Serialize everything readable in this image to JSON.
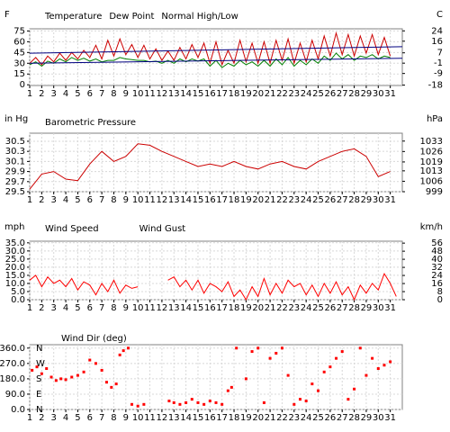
{
  "chart_data": [
    {
      "type": "line",
      "y_label": "F",
      "y2_label": "C",
      "x": [
        1,
        1.5,
        2,
        2.5,
        3,
        3.5,
        4,
        4.5,
        5,
        5.5,
        6,
        6.5,
        7,
        7.5,
        8,
        8.5,
        9,
        9.5,
        10,
        10.5,
        11,
        11.5,
        12,
        12.5,
        13,
        13.5,
        14,
        14.5,
        15,
        15.5,
        16,
        16.5,
        17,
        17.5,
        18,
        18.5,
        19,
        19.5,
        20,
        20.5,
        21,
        21.5,
        22,
        22.5,
        23,
        23.5,
        24,
        24.5,
        25,
        25.5,
        26,
        26.5,
        27,
        27.5,
        28,
        28.5,
        29,
        29.5,
        30,
        30.5,
        31
      ],
      "series": [
        {
          "name": "Temperature",
          "color": "#cc0000",
          "values": [
            30,
            38,
            28,
            40,
            32,
            44,
            34,
            45,
            36,
            48,
            38,
            55,
            36,
            62,
            40,
            64,
            42,
            56,
            38,
            55,
            36,
            50,
            34,
            47,
            34,
            52,
            36,
            56,
            38,
            58,
            30,
            60,
            28,
            48,
            30,
            62,
            32,
            58,
            30,
            60,
            30,
            62,
            34,
            64,
            30,
            58,
            32,
            62,
            36,
            68,
            40,
            72,
            42,
            70,
            40,
            68,
            44,
            70,
            42,
            66,
            40
          ]
        },
        {
          "name": "Dew Point",
          "color": "#008000",
          "values": [
            28,
            32,
            26,
            33,
            30,
            36,
            32,
            38,
            34,
            37,
            33,
            36,
            32,
            34,
            34,
            38,
            36,
            35,
            34,
            34,
            32,
            33,
            30,
            34,
            30,
            36,
            32,
            36,
            33,
            36,
            26,
            34,
            24,
            30,
            26,
            34,
            28,
            32,
            26,
            34,
            26,
            36,
            28,
            38,
            26,
            34,
            28,
            36,
            30,
            40,
            34,
            44,
            36,
            42,
            34,
            40,
            38,
            42,
            36,
            40,
            38
          ]
        },
        {
          "name": "Normal High/Low",
          "color": "#000080",
          "x": [
            1,
            32
          ],
          "high": [
            44,
            53
          ],
          "low": [
            30,
            37
          ]
        }
      ],
      "xlim": [
        1,
        32
      ],
      "xticks": [
        1,
        2,
        3,
        4,
        5,
        6,
        7,
        8,
        9,
        10,
        11,
        12,
        13,
        14,
        15,
        16,
        17,
        18,
        19,
        20,
        21,
        22,
        23,
        24,
        25,
        26,
        27,
        28,
        29,
        30,
        31
      ],
      "ylim": [
        -1,
        78
      ],
      "yticks": [
        75,
        60,
        45,
        30,
        15,
        0
      ],
      "y2lim": [
        -18.3,
        25.6
      ],
      "y2ticks": [
        24,
        16,
        7,
        -1,
        -9,
        -18
      ],
      "grid": true
    },
    {
      "type": "line",
      "y_label": "in Hg",
      "y2_label": "hPa",
      "title": "Barometric Pressure",
      "title_color": "#cc0000",
      "x": [
        1,
        2,
        3,
        4,
        5,
        6,
        7,
        8,
        9,
        10,
        11,
        12,
        13,
        14,
        15,
        16,
        17,
        18,
        19,
        20,
        21,
        22,
        23,
        24,
        25,
        26,
        27,
        28,
        29,
        30,
        31
      ],
      "series": [
        {
          "name": "Barometric Pressure",
          "color": "#cc0000",
          "values": [
            29.55,
            29.85,
            29.9,
            29.75,
            29.72,
            30.05,
            30.3,
            30.1,
            30.2,
            30.45,
            30.42,
            30.3,
            30.2,
            30.1,
            30.0,
            30.05,
            30.0,
            30.1,
            30.0,
            29.95,
            30.05,
            30.1,
            30.0,
            29.95,
            30.1,
            30.2,
            30.3,
            30.35,
            30.2,
            29.8,
            29.9
          ]
        }
      ],
      "xlim": [
        1,
        32
      ],
      "xticks": [
        1,
        2,
        3,
        4,
        5,
        6,
        7,
        8,
        9,
        10,
        11,
        12,
        13,
        14,
        15,
        16,
        17,
        18,
        19,
        20,
        21,
        22,
        23,
        24,
        25,
        26,
        27,
        28,
        29,
        30,
        31
      ],
      "ylim": [
        29.5,
        30.66
      ],
      "yticks": [
        30.5,
        30.3,
        30.1,
        29.9,
        29.7,
        29.5
      ],
      "y2lim": [
        999,
        1038.3
      ],
      "y2ticks": [
        1033,
        1026,
        1019,
        1013,
        1006,
        999
      ],
      "grid": true
    },
    {
      "type": "line",
      "y_label": "mph",
      "y2_label": "km/h",
      "x": [
        1,
        1.5,
        2,
        2.5,
        3,
        3.5,
        4,
        4.5,
        5,
        5.5,
        6,
        6.5,
        7,
        7.5,
        8,
        8.5,
        9,
        9.5,
        10,
        10.5,
        11,
        11.5,
        12,
        12.5,
        13,
        13.5,
        14,
        14.5,
        15,
        15.5,
        16,
        16.5,
        17,
        17.5,
        18,
        18.5,
        19,
        19.5,
        20,
        20.5,
        21,
        21.5,
        22,
        22.5,
        23,
        23.5,
        24,
        24.5,
        25,
        25.5,
        26,
        26.5,
        27,
        27.5,
        28,
        28.5,
        29,
        29.5,
        30,
        30.5,
        31,
        31.5
      ],
      "series": [
        {
          "name": "Wind Speed",
          "color": "#ff0000",
          "values": [
            12,
            15,
            8,
            14,
            10,
            12,
            8,
            13,
            6,
            11,
            9,
            3,
            10,
            5,
            12,
            4,
            9,
            7,
            8,
            null,
            null,
            null,
            null,
            12,
            14,
            8,
            12,
            6,
            12,
            4,
            10,
            8,
            5,
            11,
            2,
            6,
            0,
            8,
            2,
            13,
            3,
            10,
            4,
            12,
            8,
            10,
            3,
            9,
            2,
            10,
            4,
            11,
            3,
            8,
            0,
            9,
            4,
            10,
            6,
            16,
            10,
            2
          ]
        },
        {
          "name": "Wind Gust",
          "color": "#000080",
          "values": [
            null,
            null,
            null,
            null,
            null,
            null,
            null,
            null,
            null,
            null,
            null,
            null,
            null,
            null,
            null,
            null,
            null,
            null,
            null,
            null,
            null,
            null,
            null,
            null,
            null,
            null,
            null,
            null,
            null,
            null,
            null,
            null,
            null,
            null,
            null,
            null,
            null,
            null,
            null,
            null,
            null,
            null,
            null,
            null,
            null,
            null,
            null,
            null,
            null,
            null,
            null,
            null,
            null,
            null,
            null,
            null,
            null,
            null,
            null,
            null,
            null,
            null
          ]
        }
      ],
      "xlim": [
        1,
        32
      ],
      "xticks": [
        1,
        2,
        3,
        4,
        5,
        6,
        7,
        8,
        9,
        10,
        11,
        12,
        13,
        14,
        15,
        16,
        17,
        18,
        19,
        20,
        21,
        22,
        23,
        24,
        25,
        26,
        27,
        28,
        29,
        30,
        31
      ],
      "ylim": [
        0,
        36
      ],
      "yticks": [
        {
          "value": 35,
          "label": "35.0"
        },
        {
          "value": 30,
          "label": "30.0"
        },
        {
          "value": 25,
          "label": "25.0"
        },
        {
          "value": 20,
          "label": "20.0"
        },
        {
          "value": 15,
          "label": "15.0"
        },
        {
          "value": 10,
          "label": "10.0"
        },
        {
          "value": 5,
          "label": "5.0"
        },
        {
          "value": 0,
          "label": "0.0"
        }
      ],
      "y2lim": [
        0,
        57.9
      ],
      "y2ticks": [
        56,
        48,
        40,
        32,
        24,
        16,
        8,
        0
      ],
      "grid": true
    },
    {
      "type": "scatter",
      "title": "Wind Dir (deg)",
      "title_color": "#ff0000",
      "x": [
        1.2,
        1.6,
        2,
        2.4,
        2.8,
        3.2,
        3.6,
        4,
        4.5,
        5,
        5.5,
        6,
        6.5,
        7,
        7.4,
        7.8,
        8.2,
        8.5,
        8.8,
        9.2,
        9.5,
        10,
        10.5,
        12.6,
        13,
        13.5,
        14,
        14.5,
        15,
        15.5,
        16,
        16.5,
        17,
        17.5,
        17.8,
        18.2,
        19,
        19.5,
        20,
        20.5,
        21,
        21.5,
        22,
        22.5,
        23,
        23.5,
        24,
        24.5,
        25,
        25.5,
        26,
        26.5,
        27,
        27.5,
        28,
        28.5,
        29,
        29.5,
        30,
        30.5,
        31
      ],
      "series": [
        {
          "name": "Wind Dir (deg)",
          "color": "#ff0000",
          "values": [
            230,
            250,
            210,
            240,
            190,
            170,
            180,
            175,
            190,
            200,
            220,
            290,
            270,
            230,
            160,
            130,
            150,
            320,
            345,
            360,
            30,
            20,
            30,
            50,
            40,
            30,
            40,
            60,
            40,
            30,
            50,
            40,
            30,
            110,
            130,
            360,
            180,
            340,
            360,
            40,
            300,
            330,
            360,
            200,
            30,
            60,
            50,
            150,
            110,
            220,
            250,
            300,
            340,
            60,
            120,
            360,
            200,
            300,
            240,
            260,
            280
          ]
        }
      ],
      "compass": [
        {
          "value": 360,
          "label": "N"
        },
        {
          "value": 270,
          "label": "W"
        },
        {
          "value": 180,
          "label": "S"
        },
        {
          "value": 90,
          "label": "E"
        },
        {
          "value": 0,
          "label": "N"
        }
      ],
      "xlim": [
        1,
        32
      ],
      "xticks": [
        1,
        2,
        3,
        4,
        5,
        6,
        7,
        8,
        9,
        10,
        11,
        12,
        13,
        14,
        15,
        16,
        17,
        18,
        19,
        20,
        21,
        22,
        23,
        24,
        25,
        26,
        27,
        28,
        29,
        30,
        31
      ],
      "ylim": [
        0,
        380
      ],
      "yticks": [
        {
          "value": 360,
          "label": "360.0"
        },
        {
          "value": 270,
          "label": "270.0"
        },
        {
          "value": 180,
          "label": "180.0"
        },
        {
          "value": 90,
          "label": "90.0"
        },
        {
          "value": 0,
          "label": "0.0"
        }
      ],
      "grid": true
    }
  ]
}
